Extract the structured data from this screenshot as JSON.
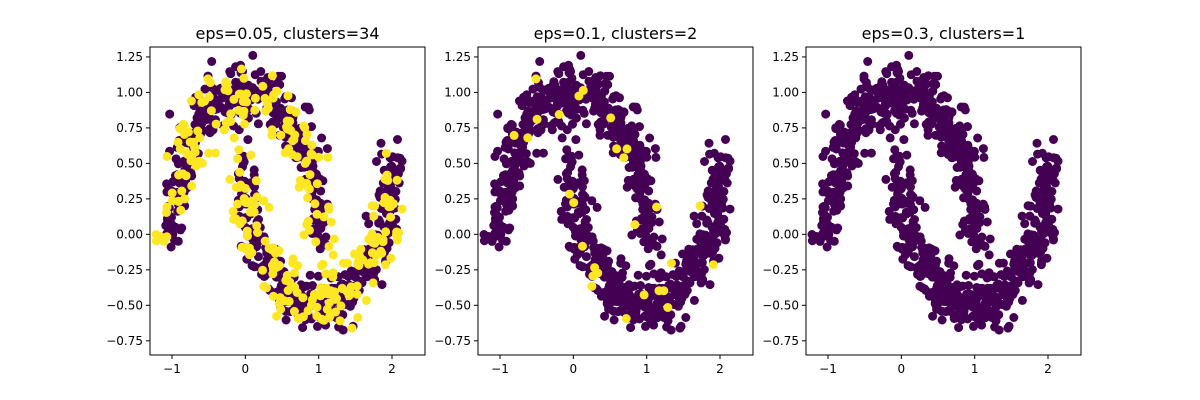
{
  "colors": {
    "cluster": "#440154",
    "noise": "#fde725",
    "axis": "#000000",
    "background": "#ffffff"
  },
  "chart_data": [
    {
      "type": "scatter",
      "title": "eps=0.05, clusters=34",
      "xlabel": "",
      "ylabel": "",
      "xlim": [
        -1.3,
        2.45
      ],
      "ylim": [
        -0.85,
        1.32
      ],
      "x_ticks": [
        -1,
        0,
        1,
        2
      ],
      "y_ticks": [
        -0.75,
        -0.5,
        -0.25,
        0.0,
        0.25,
        0.5,
        0.75,
        1.0,
        1.25
      ],
      "x_tick_labels": [
        "−1",
        "0",
        "1",
        "2"
      ],
      "y_tick_labels": [
        "−0.75",
        "−0.50",
        "−0.25",
        "0.00",
        "0.25",
        "0.50",
        "0.75",
        "1.00",
        "1.25"
      ],
      "grid": false,
      "n_points": 1000,
      "noise_fraction": 0.38,
      "noise_seed": 11
    },
    {
      "type": "scatter",
      "title": "eps=0.1, clusters=2",
      "xlabel": "",
      "ylabel": "",
      "xlim": [
        -1.3,
        2.45
      ],
      "ylim": [
        -0.85,
        1.32
      ],
      "x_ticks": [
        -1,
        0,
        1,
        2
      ],
      "y_ticks": [
        -0.75,
        -0.5,
        -0.25,
        0.0,
        0.25,
        0.5,
        0.75,
        1.0,
        1.25
      ],
      "x_tick_labels": [
        "−1",
        "0",
        "1",
        "2"
      ],
      "y_tick_labels": [
        "−0.75",
        "−0.50",
        "−0.25",
        "0.00",
        "0.25",
        "0.50",
        "0.75",
        "1.00",
        "1.25"
      ],
      "grid": false,
      "n_points": 1000,
      "noise_fraction": 0.025,
      "noise_seed": 23
    },
    {
      "type": "scatter",
      "title": "eps=0.3, clusters=1",
      "xlabel": "",
      "ylabel": "",
      "xlim": [
        -1.3,
        2.45
      ],
      "ylim": [
        -0.85,
        1.32
      ],
      "x_ticks": [
        -1,
        0,
        1,
        2
      ],
      "y_ticks": [
        -0.75,
        -0.5,
        -0.25,
        0.0,
        0.25,
        0.5,
        0.75,
        1.0,
        1.25
      ],
      "x_tick_labels": [
        "−1",
        "0",
        "1",
        "2"
      ],
      "y_tick_labels": [
        "−0.75",
        "−0.50",
        "−0.25",
        "0.00",
        "0.25",
        "0.50",
        "0.75",
        "1.00",
        "1.25"
      ],
      "grid": false,
      "n_points": 1000,
      "noise_fraction": 0.0,
      "noise_seed": 37
    }
  ]
}
